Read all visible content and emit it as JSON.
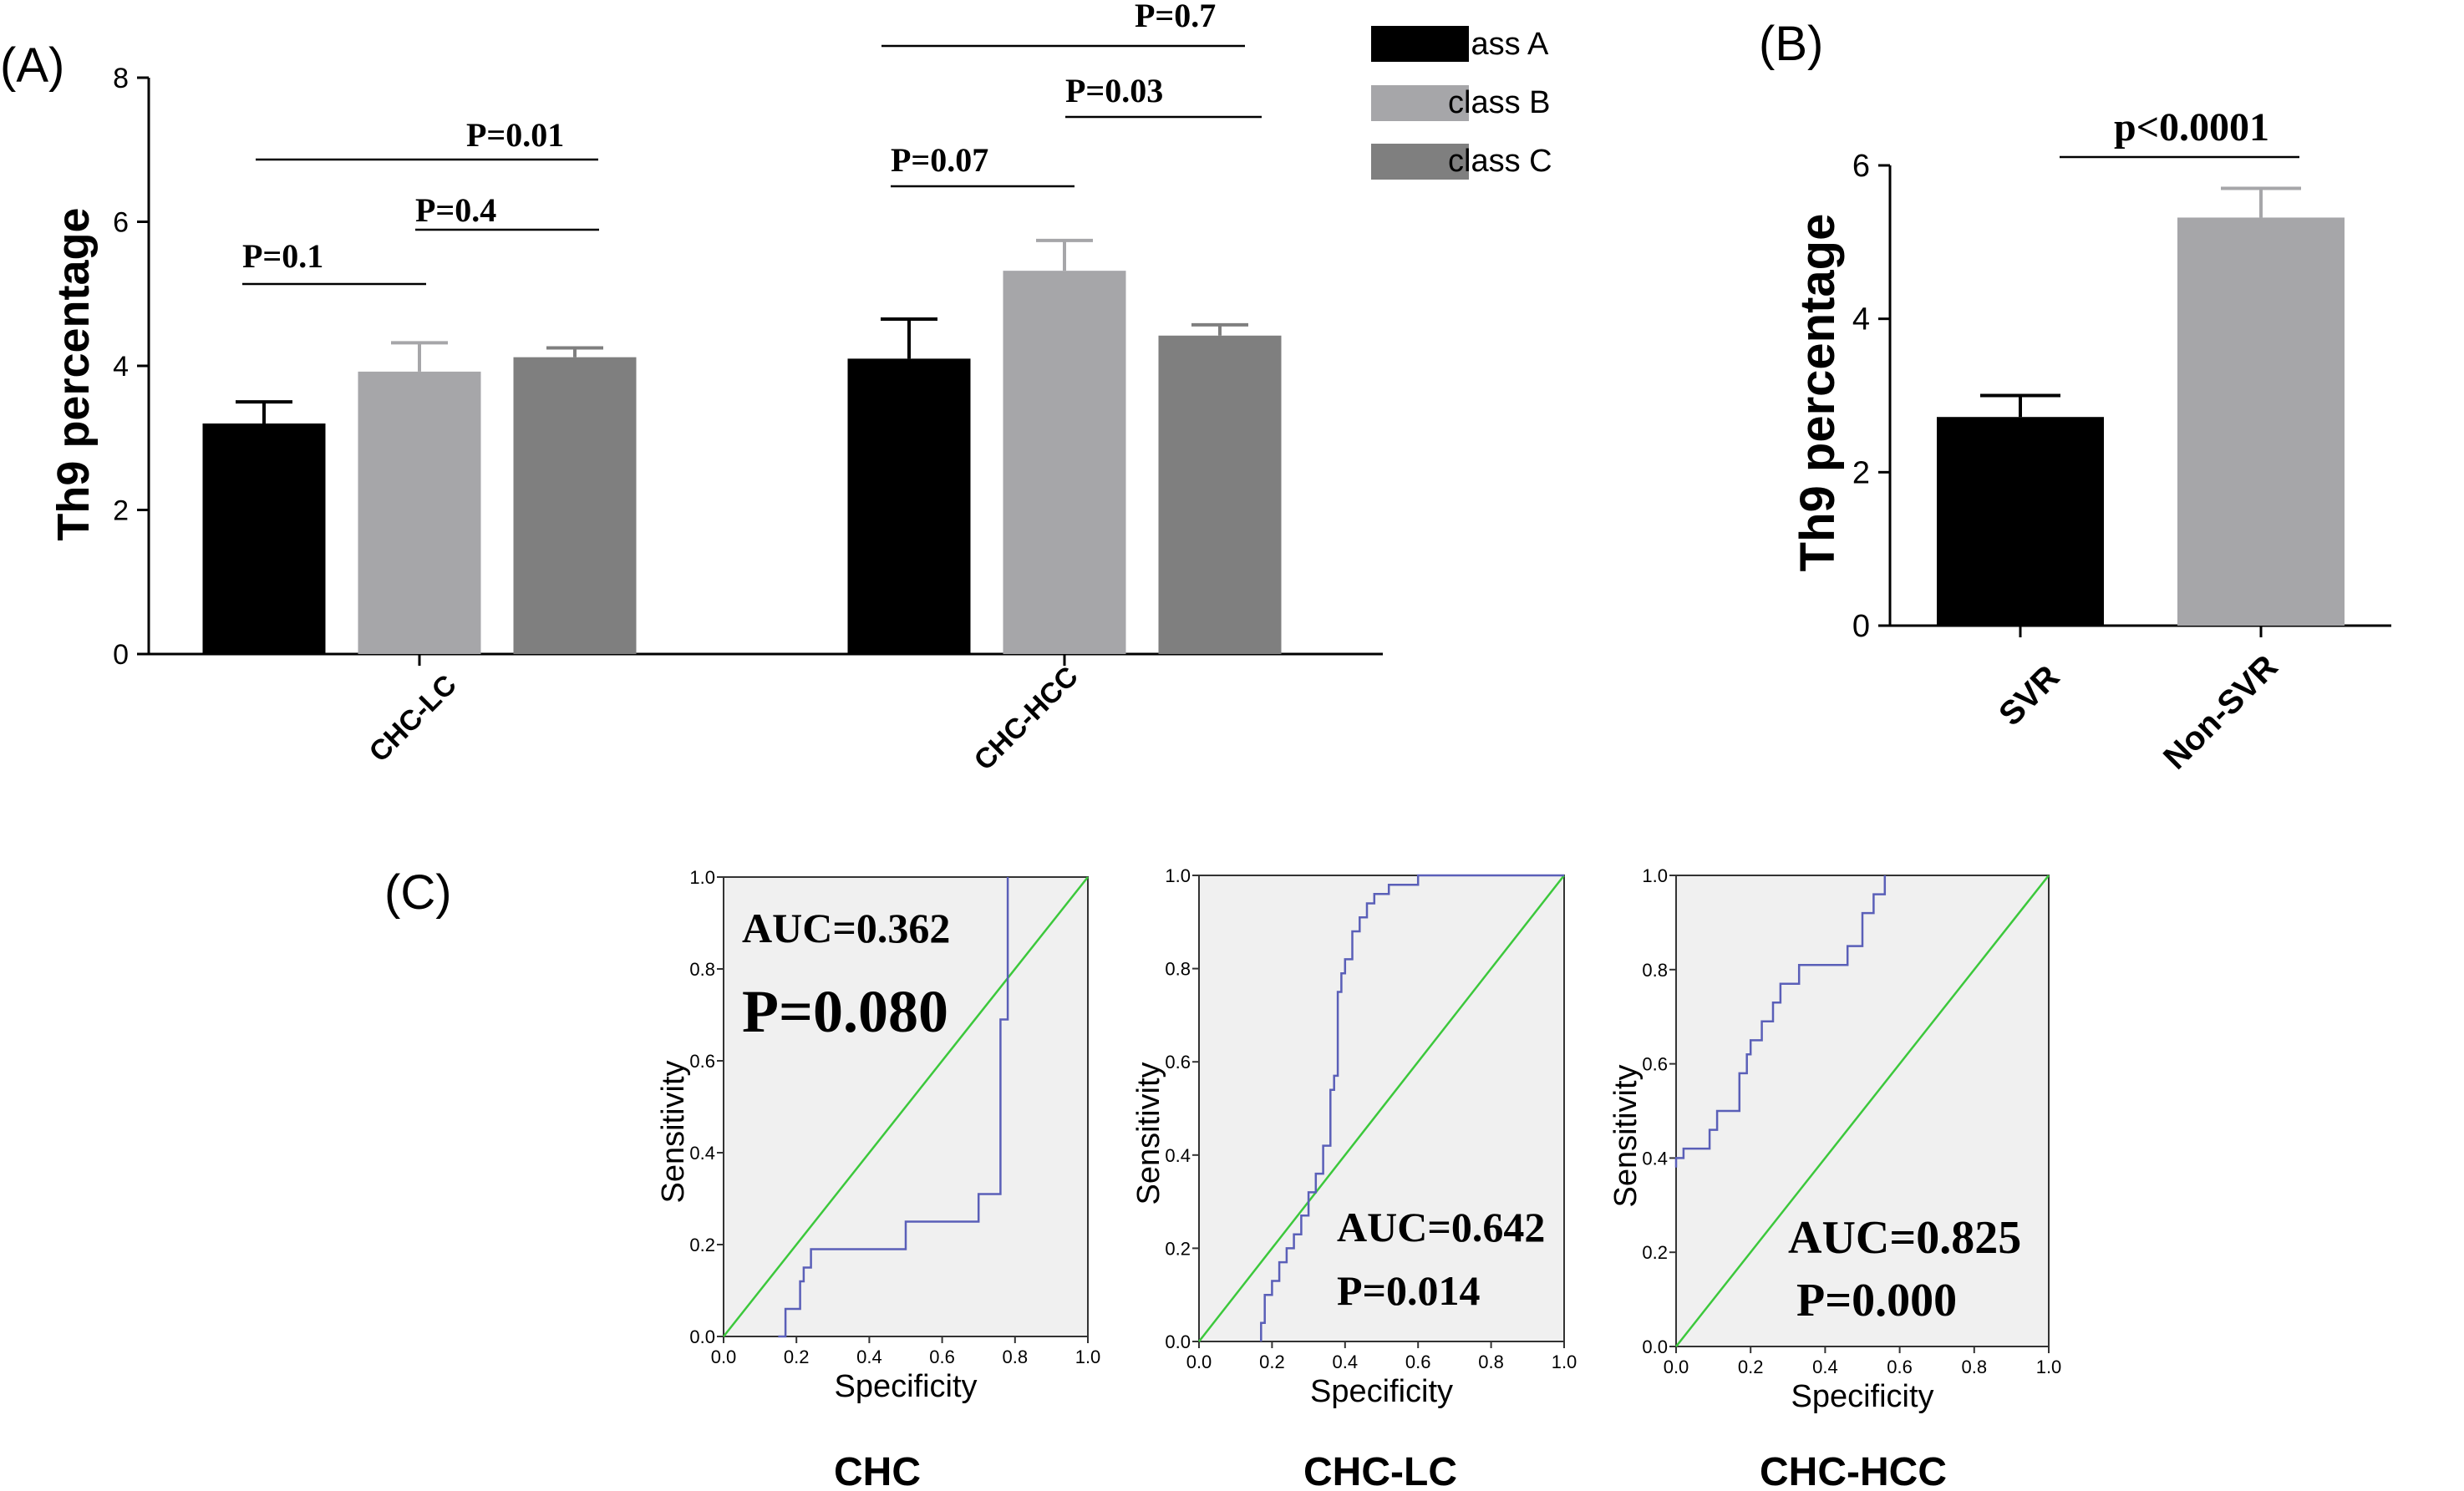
{
  "panels": {
    "A": {
      "label": "(A)",
      "ylabel": "Th9 percentage",
      "ylim": [
        0,
        8
      ],
      "yticks": [
        "0",
        "2",
        "4",
        "6",
        "8"
      ],
      "groups": [
        "CHC-LC",
        "CHC-HCC"
      ],
      "legend": [
        {
          "name": "class A",
          "color": "#000000"
        },
        {
          "name": "class B",
          "color": "#a6a6a9"
        },
        {
          "name": "class C",
          "color": "#7f7f7f"
        }
      ],
      "pvals": {
        "lc_ab": "P=0.1",
        "lc_bc": "P=0.4",
        "lc_ac": "P=0.01",
        "hcc_ab": "P=0.07",
        "hcc_bc": "P=0.03",
        "hcc_ac": "P=0.7"
      }
    },
    "B": {
      "label": "(B)",
      "ylabel": "Th9 percentage",
      "ylim": [
        0,
        6
      ],
      "yticks": [
        "0",
        "2",
        "4",
        "6"
      ],
      "pval": "p<0.0001"
    },
    "C": {
      "label": "(C)",
      "xlabel": "Specificity",
      "ylabel": "Sensitivity",
      "ticks": [
        "0.0",
        "0.2",
        "0.4",
        "0.6",
        "0.8",
        "1.0"
      ],
      "plots": [
        {
          "title": "CHC",
          "auc": "AUC=0.362",
          "p": "P=0.080"
        },
        {
          "title": "CHC-LC",
          "auc": "AUC=0.642",
          "p": "P=0.014"
        },
        {
          "title": "CHC-HCC",
          "auc": "AUC=0.825",
          "p": "P=0.000"
        }
      ]
    }
  },
  "chart_data": [
    {
      "type": "bar",
      "title": "",
      "ylabel": "Th9 percentage",
      "ylim": [
        0,
        8
      ],
      "categories": [
        "CHC-LC",
        "CHC-HCC"
      ],
      "series": [
        {
          "name": "class A",
          "values": [
            3.2,
            4.1
          ],
          "errors": [
            0.3,
            0.55
          ]
        },
        {
          "name": "class B",
          "values": [
            3.92,
            5.32
          ],
          "errors": [
            0.4,
            0.42
          ]
        },
        {
          "name": "class C",
          "values": [
            4.12,
            4.42
          ],
          "errors": [
            0.13,
            0.15
          ]
        }
      ]
    },
    {
      "type": "bar",
      "title": "",
      "ylabel": "Th9 percentage",
      "ylim": [
        0,
        6
      ],
      "categories": [
        "SVR",
        "Non-SVR"
      ],
      "values": [
        2.72,
        5.32
      ],
      "errors": [
        0.28,
        0.38
      ]
    },
    {
      "type": "line",
      "title": "CHC",
      "xlabel": "Specificity",
      "ylabel": "Sensitivity",
      "xlim": [
        0,
        1
      ],
      "ylim": [
        0,
        1
      ],
      "series": [
        {
          "name": "",
          "x": [
            0.15,
            0.17,
            0.17,
            0.21,
            0.21,
            0.22,
            0.22,
            0.24,
            0.24,
            0.5,
            0.5,
            0.7,
            0.7,
            0.76,
            0.76,
            0.78,
            0.78
          ],
          "y": [
            0.0,
            0.0,
            0.06,
            0.06,
            0.12,
            0.12,
            0.15,
            0.15,
            0.19,
            0.19,
            0.25,
            0.25,
            0.31,
            0.31,
            0.69,
            0.69,
            1.0
          ]
        },
        {
          "name": "",
          "x": [
            0,
            1
          ],
          "y": [
            0,
            1
          ]
        }
      ]
    },
    {
      "type": "line",
      "title": "CHC-LC",
      "xlabel": "Specificity",
      "ylabel": "Sensitivity",
      "xlim": [
        0,
        1
      ],
      "ylim": [
        0,
        1
      ],
      "series": [
        {
          "name": "",
          "x": [
            0.17,
            0.17,
            0.18,
            0.18,
            0.2,
            0.2,
            0.22,
            0.22,
            0.24,
            0.24,
            0.26,
            0.26,
            0.28,
            0.28,
            0.3,
            0.3,
            0.32,
            0.32,
            0.34,
            0.34,
            0.36,
            0.36,
            0.37,
            0.37,
            0.38,
            0.38,
            0.39,
            0.39,
            0.4,
            0.4,
            0.42,
            0.42,
            0.44,
            0.44,
            0.46,
            0.46,
            0.48,
            0.48,
            0.52,
            0.52,
            0.6,
            0.6,
            1.0
          ],
          "y": [
            0.0,
            0.04,
            0.04,
            0.1,
            0.1,
            0.13,
            0.13,
            0.17,
            0.17,
            0.2,
            0.2,
            0.23,
            0.23,
            0.27,
            0.27,
            0.32,
            0.32,
            0.36,
            0.36,
            0.42,
            0.42,
            0.54,
            0.54,
            0.57,
            0.57,
            0.75,
            0.75,
            0.79,
            0.79,
            0.82,
            0.82,
            0.88,
            0.88,
            0.91,
            0.91,
            0.94,
            0.94,
            0.96,
            0.96,
            0.98,
            0.98,
            1.0,
            1.0
          ]
        },
        {
          "name": "",
          "x": [
            0,
            1
          ],
          "y": [
            0,
            1
          ]
        }
      ]
    },
    {
      "type": "line",
      "title": "CHC-HCC",
      "xlabel": "Specificity",
      "ylabel": "Sensitivity",
      "xlim": [
        0,
        1
      ],
      "ylim": [
        0,
        1
      ],
      "series": [
        {
          "name": "",
          "x": [
            0.0,
            0.0,
            0.02,
            0.02,
            0.09,
            0.09,
            0.11,
            0.11,
            0.17,
            0.17,
            0.19,
            0.19,
            0.2,
            0.2,
            0.23,
            0.23,
            0.26,
            0.26,
            0.28,
            0.28,
            0.33,
            0.33,
            0.46,
            0.46,
            0.5,
            0.5,
            0.53,
            0.53,
            0.56,
            0.56
          ],
          "y": [
            0.38,
            0.4,
            0.4,
            0.42,
            0.42,
            0.46,
            0.46,
            0.5,
            0.5,
            0.58,
            0.58,
            0.62,
            0.62,
            0.65,
            0.65,
            0.69,
            0.69,
            0.73,
            0.73,
            0.77,
            0.77,
            0.81,
            0.81,
            0.85,
            0.85,
            0.92,
            0.92,
            0.96,
            0.96,
            1.0
          ]
        },
        {
          "name": "",
          "x": [
            0,
            1
          ],
          "y": [
            0,
            1
          ]
        }
      ]
    }
  ]
}
